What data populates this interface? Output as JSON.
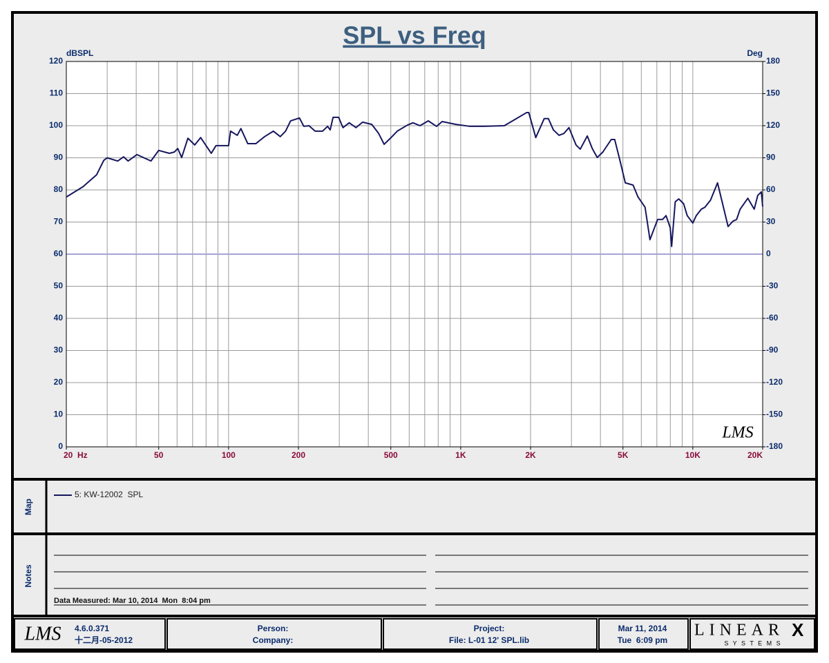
{
  "chart_data": {
    "type": "line",
    "title": "SPL vs Freq",
    "y_label": "dBSPL",
    "y2_label": "Deg",
    "xscale": "log",
    "xlim": [
      20,
      20000
    ],
    "xticks": [
      {
        "value": 20,
        "label": "20  Hz"
      },
      50,
      100,
      200,
      500,
      {
        "value": 1000,
        "label": "1K"
      },
      {
        "value": 2000,
        "label": "2K"
      },
      {
        "value": 5000,
        "label": "5K"
      },
      {
        "value": 10000,
        "label": "10K"
      },
      {
        "value": 20000,
        "label": "20K"
      }
    ],
    "xgrid": [
      20,
      30,
      40,
      50,
      60,
      70,
      80,
      90,
      100,
      200,
      300,
      400,
      500,
      600,
      700,
      800,
      900,
      1000,
      2000,
      3000,
      4000,
      5000,
      6000,
      7000,
      8000,
      9000,
      10000,
      20000
    ],
    "ylim": [
      0,
      120
    ],
    "yticks": [
      0,
      10,
      20,
      30,
      40,
      50,
      60,
      70,
      80,
      90,
      100,
      110,
      120
    ],
    "y2lim": [
      -180,
      180
    ],
    "y2ticks": [
      -180,
      -150,
      -120,
      -90,
      -60,
      -30,
      0,
      30,
      60,
      90,
      120,
      150,
      180
    ],
    "grid": true,
    "y2_zero_line_color": "#a4a4d4",
    "x": [
      20,
      23.6,
      27,
      29,
      30,
      33.3,
      35.3,
      36.9,
      40.3,
      46.3,
      50,
      55.6,
      58.4,
      60.4,
      62.8,
      66.8,
      71.5,
      75.8,
      84.2,
      88.3,
      100,
      102,
      109,
      113,
      121,
      131,
      143,
      156,
      167,
      176,
      185,
      202,
      211,
      222,
      236,
      254,
      267,
      274,
      282,
      298,
      311,
      331,
      354,
      378,
      414,
      443,
      468,
      498,
      533,
      590,
      623,
      668,
      725,
      787,
      832,
      954,
      1095,
      1256,
      1542,
      1710,
      1925,
      1965,
      2106,
      2290,
      2387,
      2508,
      2653,
      2786,
      2927,
      3140,
      3274,
      3511,
      3688,
      3874,
      4097,
      4453,
      4608,
      4876,
      5119,
      5530,
      5807,
      6228,
      6537,
      7054,
      7404,
      7669,
      7995,
      8106,
      8400,
      8700,
      9130,
      9459,
      10000,
      10350,
      10880,
      11270,
      11920,
      12780,
      14190,
      14910,
      15440,
      15990,
      17260,
      18390,
      19050,
      19730,
      20000
    ],
    "series": [
      {
        "name": "5: KW-12002  SPL",
        "color": "#16165e",
        "values": [
          77.8,
          81,
          84.7,
          89.2,
          90,
          89,
          90.3,
          89,
          91,
          89,
          92.3,
          91.4,
          91.8,
          92.9,
          90.1,
          96.1,
          94,
          96.3,
          91.4,
          93.8,
          93.8,
          98.3,
          97,
          99.1,
          94.4,
          94.4,
          96.6,
          98.3,
          96.6,
          98.3,
          101.5,
          102.4,
          99.8,
          100,
          98.3,
          98.3,
          99.8,
          98.7,
          102.6,
          102.6,
          99.4,
          100.9,
          99.4,
          101.1,
          100.4,
          97.6,
          94.2,
          96.1,
          98.3,
          100.2,
          100.9,
          100,
          101.5,
          99.8,
          101.3,
          100.4,
          99.8,
          99.8,
          100,
          101.9,
          104.1,
          104.1,
          96.3,
          102.2,
          102.2,
          98.7,
          97,
          97.6,
          99.4,
          94,
          92.7,
          96.8,
          92.9,
          90.1,
          91.8,
          95.7,
          95.7,
          88.6,
          82.2,
          81.5,
          77.8,
          74.6,
          64.5,
          70.8,
          70.8,
          72,
          68.2,
          62.4,
          76.3,
          77.2,
          75.7,
          72,
          69.7,
          72,
          74,
          74.6,
          76.8,
          82.2,
          68.6,
          70.3,
          70.8,
          74,
          77.4,
          74,
          78.3,
          79.4,
          74.8
        ]
      }
    ],
    "plot_logo": "LMS"
  },
  "map": {
    "label": "Map"
  },
  "notes": {
    "label": "Notes",
    "measured": "Data Measured: Mar 10, 2014  Mon  8:04 pm"
  },
  "footer": {
    "logo": "LMS",
    "version": "4.6.0.371",
    "build_date": "十二月-05-2012",
    "person": "Person:",
    "company": "Company:",
    "project": "Project:",
    "file": "File: L-01 12' SPL.lib",
    "date": "Mar 11, 2014",
    "time": "Tue  6:09 pm",
    "brand": "LINEAR",
    "brand_mark": "X",
    "brand_sub": "S Y S T E M S"
  }
}
